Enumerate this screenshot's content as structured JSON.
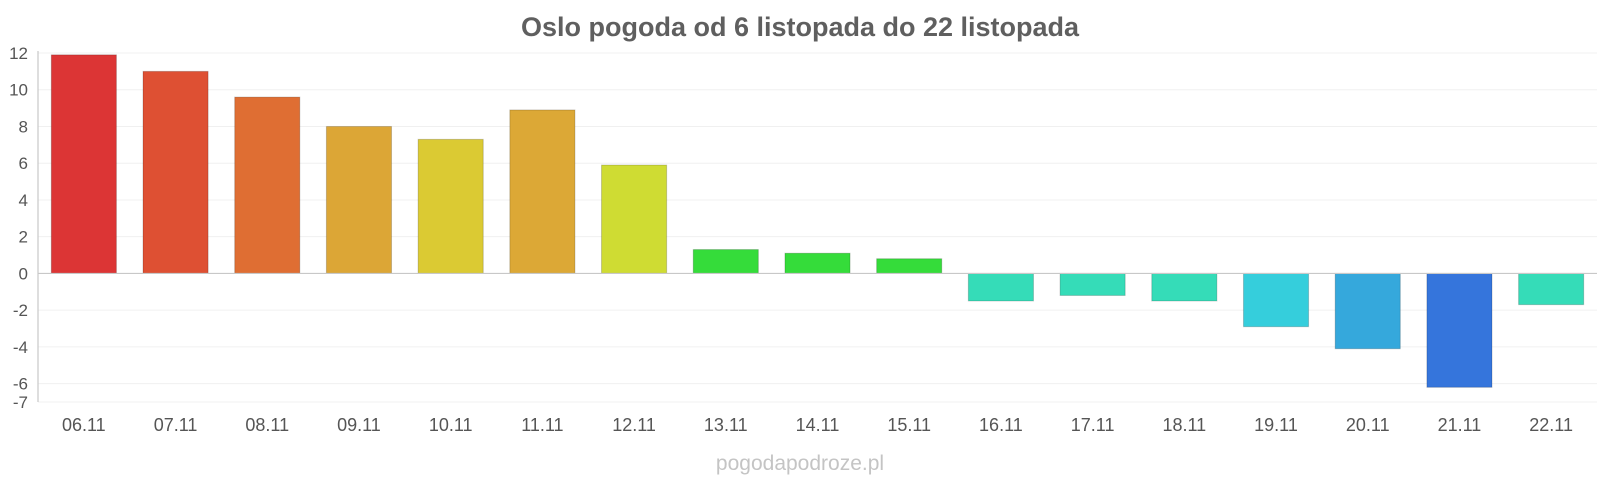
{
  "chart_data": {
    "type": "bar",
    "title": "Oslo pogoda od 6 listopada do 22 listopada",
    "xlabel": "",
    "ylabel": "",
    "categories": [
      "06.11",
      "07.11",
      "08.11",
      "09.11",
      "10.11",
      "11.11",
      "12.11",
      "13.11",
      "14.11",
      "15.11",
      "16.11",
      "17.11",
      "18.11",
      "19.11",
      "20.11",
      "21.11",
      "22.11"
    ],
    "values": [
      11.9,
      11.0,
      9.6,
      8.0,
      7.3,
      8.9,
      5.9,
      1.3,
      1.1,
      0.8,
      -1.5,
      -1.2,
      -1.5,
      -2.9,
      -4.1,
      -6.2,
      -1.7
    ],
    "colors": [
      "#dc3535",
      "#de5033",
      "#df6e33",
      "#dca636",
      "#dbca33",
      "#dca836",
      "#cfdc33",
      "#35dc3a",
      "#35dc3a",
      "#35dc3a",
      "#35dcb8",
      "#35dcb8",
      "#35dcb8",
      "#35cedc",
      "#35a8dc",
      "#3575dc",
      "#35dcb8"
    ],
    "ylim": [
      -7,
      12
    ],
    "yticks": [
      12,
      10,
      8,
      6,
      4,
      2,
      0,
      -2,
      -4,
      -6,
      -7
    ],
    "grid": true,
    "legend": "none"
  },
  "watermark": "pogodapodroze.pl"
}
